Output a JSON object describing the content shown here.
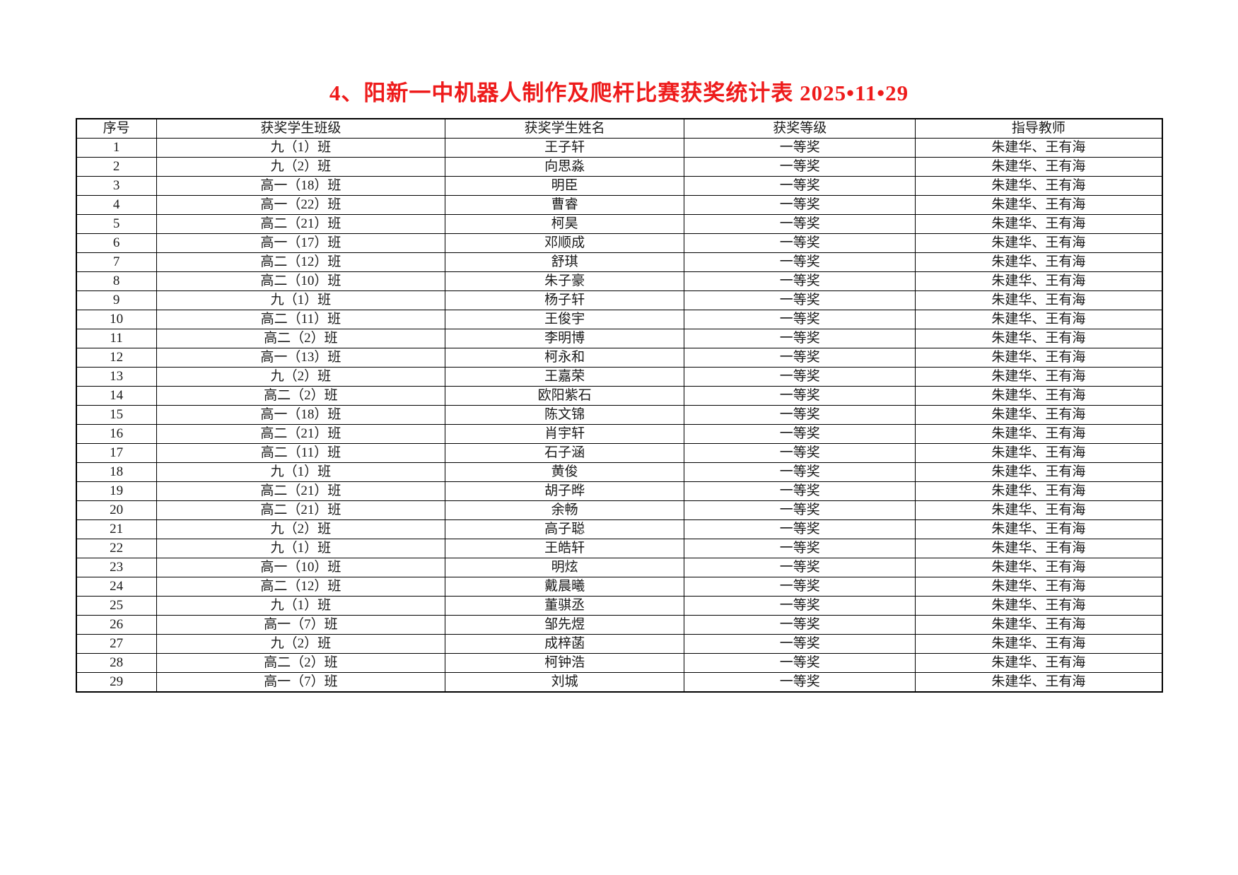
{
  "title": {
    "text": "4、阳新一中机器人制作及爬杆比赛获奖统计表 2025•11•29",
    "color": "#ee1b1b"
  },
  "table": {
    "headers": [
      "序号",
      "获奖学生班级",
      "获奖学生姓名",
      "获奖等级",
      "指导教师"
    ],
    "rows": [
      {
        "no": "1",
        "class_name": "九（1）班",
        "student": "王子轩",
        "award": "一等奖",
        "teachers": "朱建华、王有海"
      },
      {
        "no": "2",
        "class_name": "九（2）班",
        "student": "向思淼",
        "award": "一等奖",
        "teachers": "朱建华、王有海"
      },
      {
        "no": "3",
        "class_name": "高一（18）班",
        "student": "明臣",
        "award": "一等奖",
        "teachers": "朱建华、王有海"
      },
      {
        "no": "4",
        "class_name": "高一（22）班",
        "student": "曹睿",
        "award": "一等奖",
        "teachers": "朱建华、王有海"
      },
      {
        "no": "5",
        "class_name": "高二（21）班",
        "student": "柯昊",
        "award": "一等奖",
        "teachers": "朱建华、王有海"
      },
      {
        "no": "6",
        "class_name": "高一（17）班",
        "student": "邓顺成",
        "award": "一等奖",
        "teachers": "朱建华、王有海"
      },
      {
        "no": "7",
        "class_name": "高二（12）班",
        "student": "舒琪",
        "award": "一等奖",
        "teachers": "朱建华、王有海"
      },
      {
        "no": "8",
        "class_name": "高二（10）班",
        "student": "朱子豪",
        "award": "一等奖",
        "teachers": "朱建华、王有海"
      },
      {
        "no": "9",
        "class_name": "九（1）班",
        "student": "杨子轩",
        "award": "一等奖",
        "teachers": "朱建华、王有海"
      },
      {
        "no": "10",
        "class_name": "高二（11）班",
        "student": "王俊宇",
        "award": "一等奖",
        "teachers": "朱建华、王有海"
      },
      {
        "no": "11",
        "class_name": "高二（2）班",
        "student": "李明博",
        "award": "一等奖",
        "teachers": "朱建华、王有海"
      },
      {
        "no": "12",
        "class_name": "高一（13）班",
        "student": "柯永和",
        "award": "一等奖",
        "teachers": "朱建华、王有海"
      },
      {
        "no": "13",
        "class_name": "九（2）班",
        "student": "王嘉荣",
        "award": "一等奖",
        "teachers": "朱建华、王有海"
      },
      {
        "no": "14",
        "class_name": "高二（2）班",
        "student": "欧阳紫石",
        "award": "一等奖",
        "teachers": "朱建华、王有海"
      },
      {
        "no": "15",
        "class_name": "高一（18）班",
        "student": "陈文锦",
        "award": "一等奖",
        "teachers": "朱建华、王有海"
      },
      {
        "no": "16",
        "class_name": "高二（21）班",
        "student": "肖宇轩",
        "award": "一等奖",
        "teachers": "朱建华、王有海"
      },
      {
        "no": "17",
        "class_name": "高二（11）班",
        "student": "石子涵",
        "award": "一等奖",
        "teachers": "朱建华、王有海"
      },
      {
        "no": "18",
        "class_name": "九（1）班",
        "student": "黄俊",
        "award": "一等奖",
        "teachers": "朱建华、王有海"
      },
      {
        "no": "19",
        "class_name": "高二（21）班",
        "student": "胡子晔",
        "award": "一等奖",
        "teachers": "朱建华、王有海"
      },
      {
        "no": "20",
        "class_name": "高二（21）班",
        "student": "余畅",
        "award": "一等奖",
        "teachers": "朱建华、王有海"
      },
      {
        "no": "21",
        "class_name": "九（2）班",
        "student": "高子聪",
        "award": "一等奖",
        "teachers": "朱建华、王有海"
      },
      {
        "no": "22",
        "class_name": "九（1）班",
        "student": "王皓轩",
        "award": "一等奖",
        "teachers": "朱建华、王有海"
      },
      {
        "no": "23",
        "class_name": "高一（10）班",
        "student": "明炫",
        "award": "一等奖",
        "teachers": "朱建华、王有海"
      },
      {
        "no": "24",
        "class_name": "高二（12）班",
        "student": "戴晨曦",
        "award": "一等奖",
        "teachers": "朱建华、王有海"
      },
      {
        "no": "25",
        "class_name": "九（1）班",
        "student": "董骐丞",
        "award": "一等奖",
        "teachers": "朱建华、王有海"
      },
      {
        "no": "26",
        "class_name": "高一（7）班",
        "student": "邹先煜",
        "award": "一等奖",
        "teachers": "朱建华、王有海"
      },
      {
        "no": "27",
        "class_name": "九（2）班",
        "student": "成梓菡",
        "award": "一等奖",
        "teachers": "朱建华、王有海"
      },
      {
        "no": "28",
        "class_name": "高二（2）班",
        "student": "柯钟浩",
        "award": "一等奖",
        "teachers": "朱建华、王有海"
      },
      {
        "no": "29",
        "class_name": "高一（7）班",
        "student": "刘城",
        "award": "一等奖",
        "teachers": "朱建华、王有海"
      }
    ]
  }
}
